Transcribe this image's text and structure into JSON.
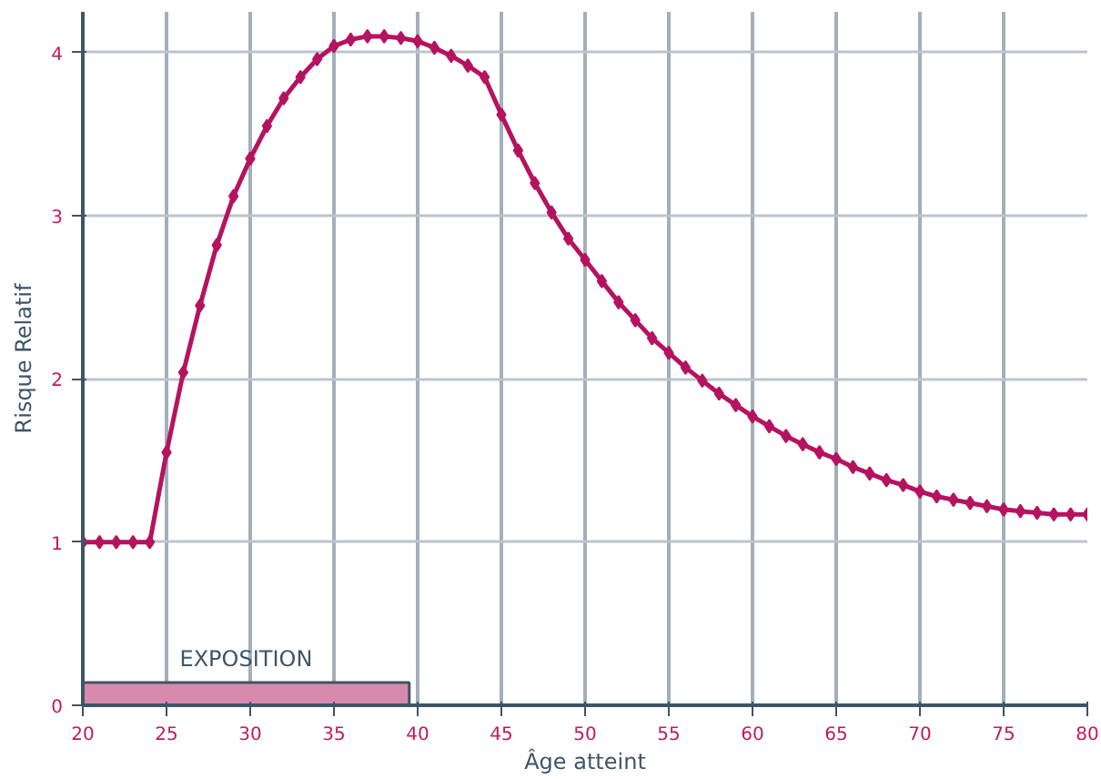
{
  "chart_data": {
    "type": "line",
    "xlabel": "Âge atteint",
    "ylabel": "Risque Relatif",
    "x": [
      20,
      21,
      22,
      23,
      24,
      25,
      26,
      27,
      28,
      29,
      30,
      31,
      32,
      33,
      34,
      35,
      36,
      37,
      38,
      39,
      40,
      41,
      42,
      43,
      44,
      45,
      46,
      47,
      48,
      49,
      50,
      51,
      52,
      53,
      54,
      55,
      56,
      57,
      58,
      59,
      60,
      61,
      62,
      63,
      64,
      65,
      66,
      67,
      68,
      69,
      70,
      71,
      72,
      73,
      74,
      75,
      76,
      77,
      78,
      79,
      80
    ],
    "series": [
      {
        "color": "#b5135f",
        "marker": "diamond",
        "values": [
          1.0,
          1.0,
          1.0,
          1.0,
          1.0,
          1.55,
          2.04,
          2.45,
          2.82,
          3.12,
          3.35,
          3.55,
          3.72,
          3.85,
          3.96,
          4.04,
          4.08,
          4.1,
          4.1,
          4.09,
          4.07,
          4.03,
          3.98,
          3.92,
          3.85,
          3.62,
          3.4,
          3.2,
          3.02,
          2.86,
          2.73,
          2.6,
          2.47,
          2.36,
          2.25,
          2.16,
          2.07,
          1.99,
          1.91,
          1.84,
          1.77,
          1.71,
          1.65,
          1.6,
          1.55,
          1.51,
          1.46,
          1.42,
          1.38,
          1.35,
          1.31,
          1.28,
          1.26,
          1.24,
          1.22,
          1.2,
          1.19,
          1.18,
          1.17,
          1.17,
          1.17
        ]
      },
      {
        "type": "area",
        "name": "EXPOSITION",
        "color": "#d88aac",
        "x": [
          20,
          39.5
        ],
        "values": [
          0.14,
          0.14
        ]
      }
    ],
    "xlim": [
      20,
      80
    ],
    "xticks": [
      20,
      25,
      30,
      35,
      40,
      45,
      50,
      55,
      60,
      65,
      70,
      75,
      80
    ],
    "ylim": [
      0,
      4.25
    ],
    "yticks": [
      0,
      1,
      2,
      3,
      4
    ],
    "grid": true,
    "line_style": "solid"
  }
}
